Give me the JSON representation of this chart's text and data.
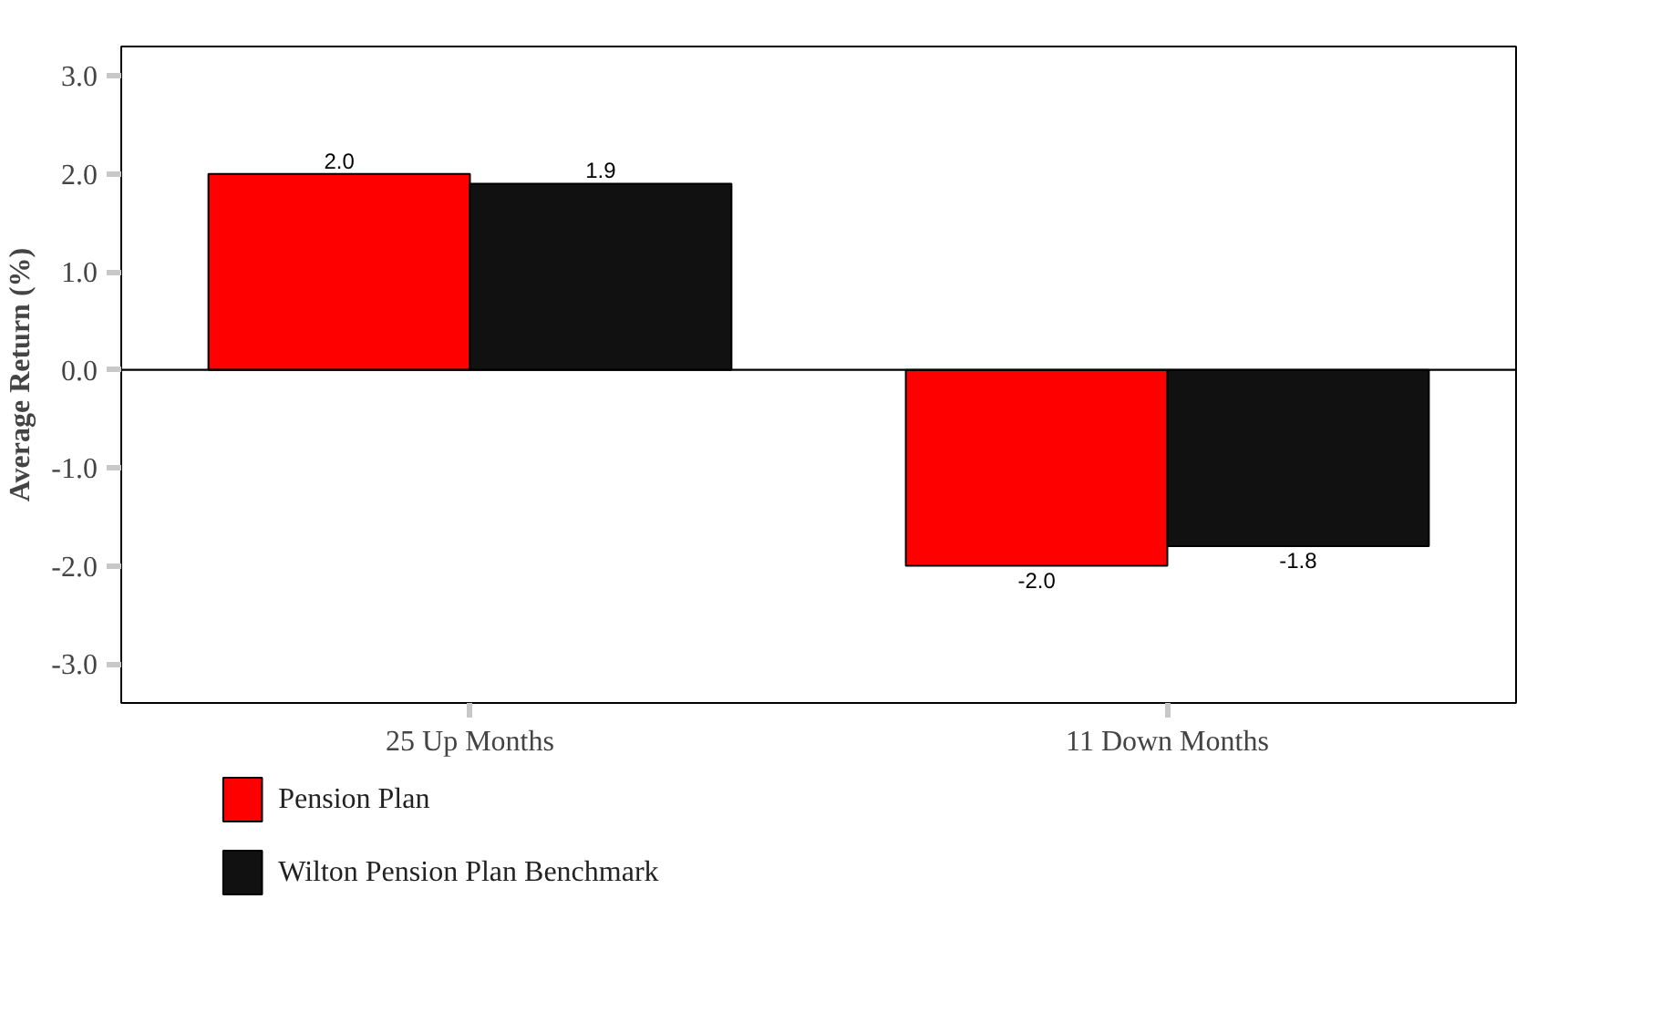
{
  "chart_data": {
    "type": "bar",
    "ylabel": "Average Return (%)",
    "categories": [
      "25 Up Months",
      "11 Down Months"
    ],
    "series": [
      {
        "name": "Pension Plan",
        "color": "#ff0000",
        "values": [
          2.0,
          -2.0
        ],
        "value_labels": [
          "2.0",
          "-2.0"
        ]
      },
      {
        "name": "Wilton Pension Plan Benchmark",
        "color": "#111111",
        "values": [
          1.9,
          -1.8
        ],
        "value_labels": [
          "1.9",
          "-1.8"
        ]
      }
    ],
    "ylim": [
      -3.4,
      3.3
    ],
    "yticks": [
      {
        "value": -3,
        "label": "-3.0"
      },
      {
        "value": -2,
        "label": "-2.0"
      },
      {
        "value": -1,
        "label": "-1.0"
      },
      {
        "value": 0,
        "label": "0.0"
      },
      {
        "value": 1,
        "label": "1.0"
      },
      {
        "value": 2,
        "label": "2.0"
      },
      {
        "value": 3,
        "label": "3.0"
      }
    ],
    "ref_lines": [
      {
        "axis": "y",
        "value": 0,
        "color": "#000000"
      }
    ],
    "data_labels": true,
    "grid": false,
    "legend": "bottom left"
  }
}
